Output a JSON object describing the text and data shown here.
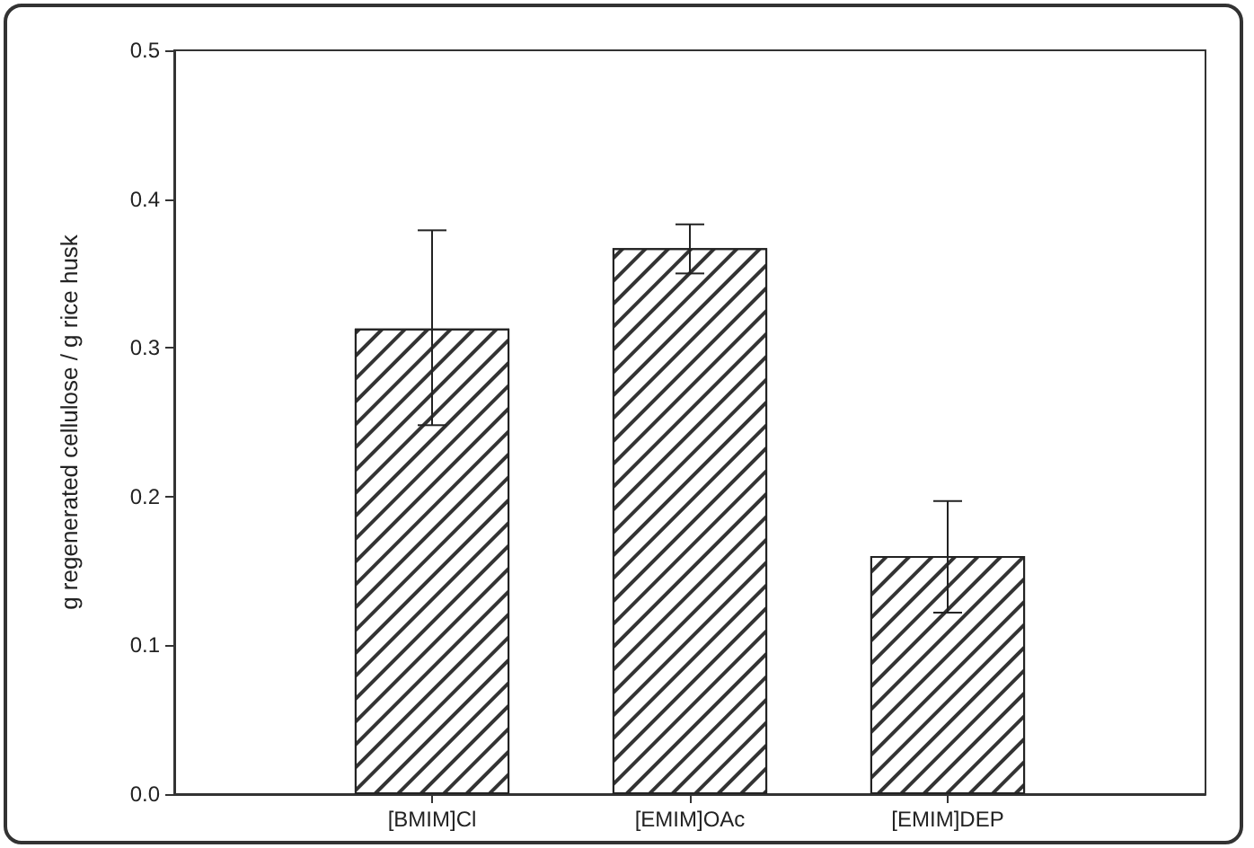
{
  "chart_data": {
    "type": "bar",
    "ylabel": "g regenerated cellulose / g rice husk",
    "categories": [
      "[BMIM]Cl",
      "[EMIM]OAc",
      "[EMIM]DEP"
    ],
    "values": [
      0.313,
      0.367,
      0.16
    ],
    "errors": [
      [
        0.248,
        0.379
      ],
      [
        0.35,
        0.383
      ],
      [
        0.122,
        0.197
      ]
    ],
    "color": "#ffffff",
    "ylim": [
      0,
      0.5
    ],
    "yticks": [
      {
        "value": 0,
        "label": "0.0"
      },
      0.1,
      0.2,
      0.3,
      0.4,
      0.5
    ],
    "grid": false
  }
}
